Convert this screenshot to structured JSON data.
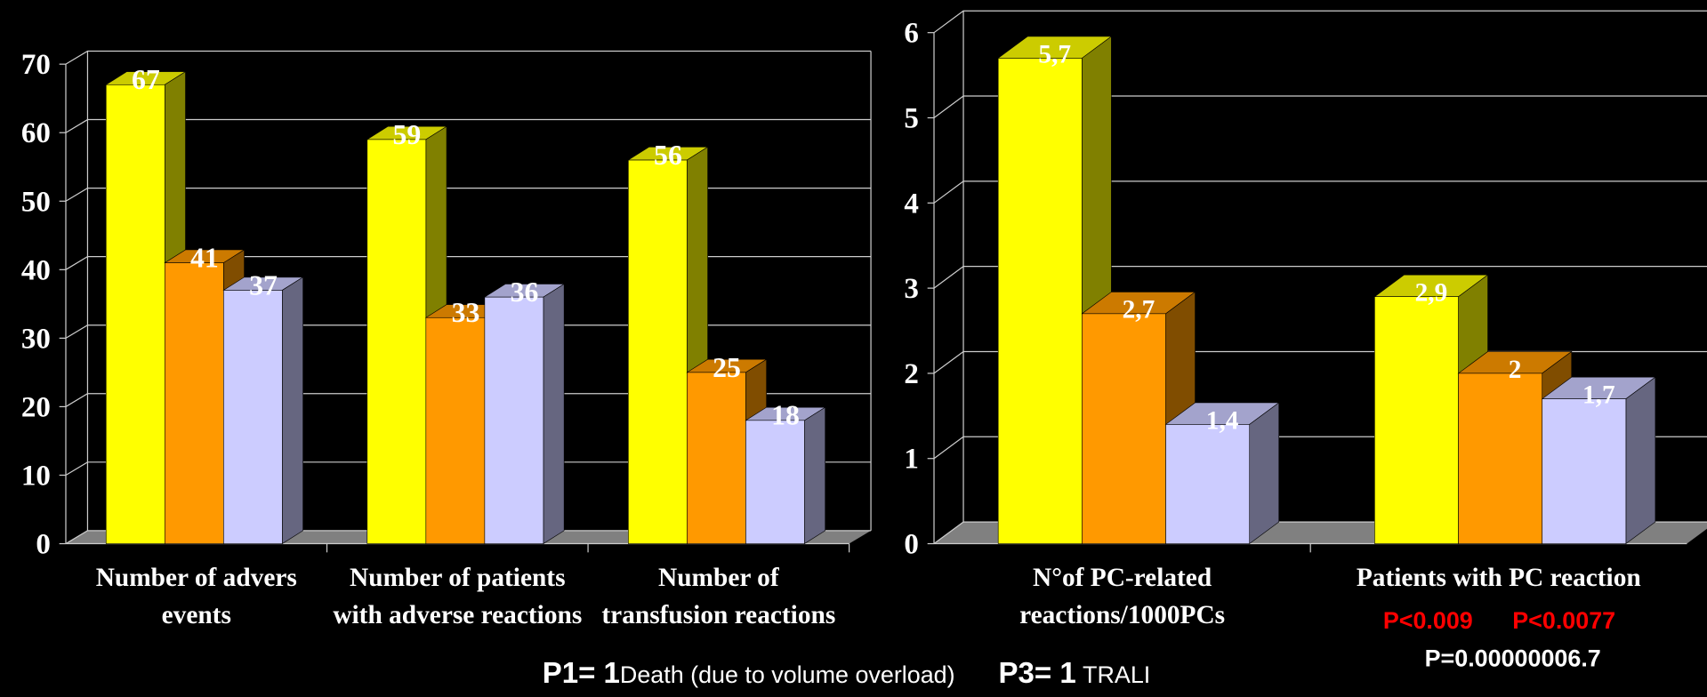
{
  "chart_data": [
    {
      "type": "bar",
      "categories": [
        "Number of advers events",
        "Number of patients with adverse reactions",
        "Number of transfusion reactions"
      ],
      "series": [
        {
          "color": "#ffff00",
          "values": [
            67,
            59,
            56
          ]
        },
        {
          "color": "#ff9900",
          "values": [
            41,
            33,
            25
          ]
        },
        {
          "color": "#ccccff",
          "values": [
            37,
            36,
            18
          ]
        }
      ],
      "ylim": [
        0,
        70
      ],
      "yticks": [
        0,
        10,
        20,
        30,
        40,
        50,
        60,
        70
      ],
      "grid": true
    },
    {
      "type": "bar",
      "categories": [
        "N°of PC-related reactions/1000PCs",
        "Patients with PC reaction"
      ],
      "series": [
        {
          "color": "#ffff00",
          "values": [
            5.7,
            2.9
          ],
          "value_labels": [
            "5,7",
            "2,9"
          ]
        },
        {
          "color": "#ff9900",
          "values": [
            2.7,
            2
          ],
          "value_labels": [
            "2,7",
            "2"
          ]
        },
        {
          "color": "#ccccff",
          "values": [
            1.4,
            1.7
          ],
          "value_labels": [
            "1,4",
            "1,7"
          ]
        }
      ],
      "ylim": [
        0,
        6
      ],
      "yticks": [
        0,
        1,
        2,
        3,
        4,
        5,
        6
      ],
      "grid": true,
      "annotations": [
        "P<0.009",
        "P<0.0077",
        "P=0.00000006.7"
      ]
    }
  ],
  "footer": {
    "p1_label": "P1= 1",
    "p1_text": "Death (due to volume overload)",
    "p3_label": "P3= 1",
    "p3_text": "TRALI"
  }
}
